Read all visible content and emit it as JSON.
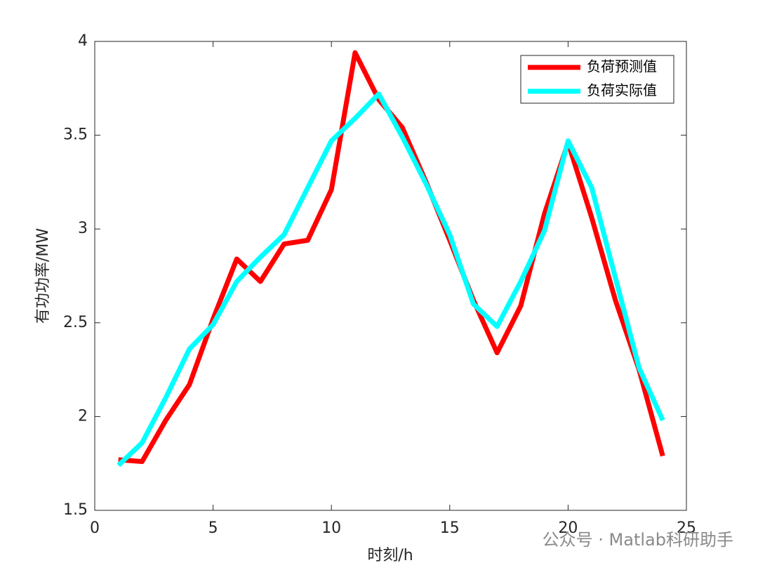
{
  "chart_data": {
    "type": "line",
    "xlabel": "时刻/h",
    "ylabel": "有功功率/MW",
    "x": [
      1,
      2,
      3,
      4,
      5,
      6,
      7,
      8,
      9,
      10,
      11,
      12,
      13,
      14,
      15,
      16,
      17,
      18,
      19,
      20,
      21,
      22,
      23,
      24
    ],
    "series": [
      {
        "name": "负荷预测值",
        "color": "#ff0000",
        "values": [
          1.77,
          1.76,
          1.98,
          2.17,
          2.52,
          2.84,
          2.72,
          2.92,
          2.94,
          3.21,
          3.94,
          3.69,
          3.54,
          3.25,
          2.94,
          2.62,
          2.34,
          2.59,
          3.08,
          3.46,
          3.06,
          2.62,
          2.25,
          1.79
        ]
      },
      {
        "name": "负荷实际值",
        "color": "#00ffff",
        "values": [
          1.74,
          1.86,
          2.1,
          2.36,
          2.49,
          2.72,
          2.85,
          2.97,
          3.22,
          3.47,
          3.59,
          3.72,
          3.49,
          3.24,
          2.97,
          2.6,
          2.48,
          2.72,
          2.99,
          3.47,
          3.22,
          2.74,
          2.26,
          1.98
        ]
      }
    ],
    "xlim": [
      0,
      25
    ],
    "xticks": [
      0,
      5,
      10,
      15,
      20,
      25
    ],
    "ylim": [
      1.5,
      4
    ],
    "yticks": [
      1.5,
      2,
      2.5,
      3,
      3.5,
      4
    ],
    "legend": "upper-right",
    "box": true,
    "grid": false,
    "watermark": "公众号 · Matlab科研助手"
  }
}
